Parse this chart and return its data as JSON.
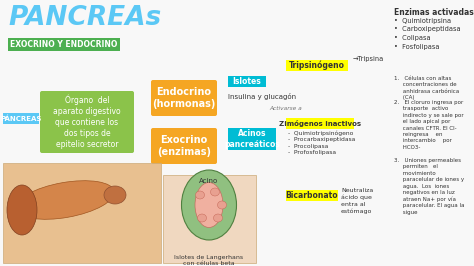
{
  "bg_color": "#f8f8f8",
  "title": "PANCREAs",
  "title_color": "#5bc8f5",
  "subtitle": "EXOCRINO Y ENDOCRINO",
  "subtitle_bg": "#4caf50",
  "subtitle_color": "#ffffff",
  "pancreas_label": "PÁNCREAS",
  "pancreas_label_bg": "#5bc8f5",
  "pancreas_label_color": "#ffffff",
  "description_box_bg": "#8bc34a",
  "description_text": "Órgano  del\naparato digestivo\nque contiene los\ndos tipos de\nepitelio secretor",
  "description_text_color": "#ffffff",
  "endocrino_box_bg": "#f5a623",
  "endocrino_text": "Endocrino\n(hormonas)",
  "endocrino_text_color": "#ffffff",
  "exocrino_box_bg": "#f5a623",
  "exocrino_text": "Exocrino\n(enzimas)",
  "exocrino_text_color": "#ffffff",
  "islotes_bg": "#00bcd4",
  "islotes_text": "Islotes",
  "insulina_text": "Insulina y glucagón",
  "acinos_bg": "#00bcd4",
  "acinos_text": "Acinos\npancreáticos",
  "tripsinogeno_bg": "#ffff00",
  "tripsinogeno_text": "Tripsinógeno",
  "zimogenos_bg": "#ffff00",
  "zimogenos_text": "Zimógenos inactivos",
  "zimogenos_list": "-  Quimiotripsinógeno\n-  Procarbaxipeptidasa\n-  Procolipasa\n-  Profosfolipasa",
  "bicarbonato_bg": "#ffff00",
  "bicarbonato_text": "Bicarbonato",
  "bicarbonato_desc": "Neutraliza\nácido que\nentra al\nestómago",
  "tripsina_text": "→Tripsina",
  "activarse_text": "Activarse a",
  "enzimas_title": "Enzimas activadas",
  "enzimas_list": "•  Quimiotripsina\n•  Carboxipeptidasa\n•  Colipasa\n•  Fosfolipasa",
  "numbered_text_1": "1.   Células con altas\n     concentraciones de\n     anhidrasa carbónica\n     (CA)",
  "numbered_text_2": "2.   El cloruro ingresa por\n     trasporte  activo\n     indirecto y se sale por\n     el lado apical por\n     canales CFTR. El Cl-\n     reingresa    en\n     intercambio    por\n     HCO3-",
  "numbered_text_3": "3.   Uniones permeables\n     permiten   el\n     movimiento\n     paracelular de iones y\n     agua.  Los  iones\n     negativos en la luz\n     atraen Na+ por vía\n     paracelular. El agua la\n     sigue",
  "acino_label": "Acino",
  "islotes_bottom_text": "Islotes de Langerhans\ncon células beta",
  "line_color": "#555555",
  "dashed_line_color": "#aaaaaa",
  "text_color": "#333333",
  "anat_bg": "#e8c090",
  "acino_bg": "#f0d8c0"
}
